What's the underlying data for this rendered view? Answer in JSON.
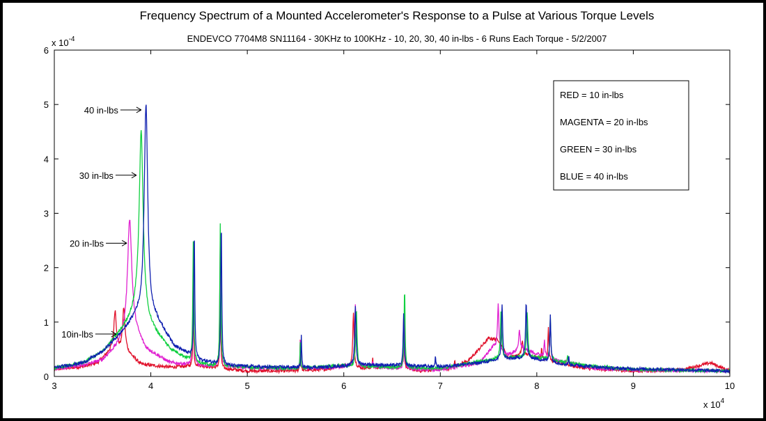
{
  "chart_data": {
    "type": "line",
    "title": "Frequency Spectrum of a Mounted Accelerometer's Response to a Pulse at Various Torque Levels",
    "subtitle": "ENDEVCO 7704M8 SN11164 - 30KHz to 100KHz - 10, 20, 30, 40 in-lbs - 6 Runs Each Torque - 5/2/2007",
    "xlabel": "",
    "ylabel": "",
    "xlim": [
      3,
      10
    ],
    "ylim": [
      0,
      6
    ],
    "x_multiplier_label": "x 10",
    "x_multiplier_exp": "4",
    "y_multiplier_label": "x 10",
    "y_multiplier_exp": "-4",
    "xticks": [
      3,
      4,
      5,
      6,
      7,
      8,
      9,
      10
    ],
    "yticks": [
      0,
      1,
      2,
      3,
      4,
      5,
      6
    ],
    "grid": false,
    "legend_position": "top-right",
    "legend": [
      {
        "text": "RED = 10 in-lbs"
      },
      {
        "text": "MAGENTA = 20 in-lbs"
      },
      {
        "text": "GREEN = 30 in-lbs"
      },
      {
        "text": "BLUE = 40 in-lbs"
      }
    ],
    "annotations": [
      {
        "text": "40 in-lbs",
        "x": 3.93,
        "y": 4.9
      },
      {
        "text": "30 in-lbs",
        "x": 3.88,
        "y": 3.7
      },
      {
        "text": "20 in-lbs",
        "x": 3.78,
        "y": 2.45
      },
      {
        "text": "10in-lbs",
        "x": 3.67,
        "y": 0.78
      }
    ],
    "series": [
      {
        "color": "#e0102a",
        "base": [
          [
            3.0,
            0.13
          ],
          [
            3.3,
            0.18
          ],
          [
            3.45,
            0.25
          ],
          [
            3.6,
            0.5
          ],
          [
            3.75,
            0.45
          ],
          [
            3.9,
            0.22
          ],
          [
            4.2,
            0.17
          ],
          [
            4.5,
            0.2
          ],
          [
            4.7,
            0.15
          ],
          [
            5.0,
            0.1
          ],
          [
            5.5,
            0.1
          ],
          [
            5.8,
            0.13
          ],
          [
            6.0,
            0.2
          ],
          [
            6.2,
            0.15
          ],
          [
            6.5,
            0.18
          ],
          [
            6.8,
            0.1
          ],
          [
            7.1,
            0.15
          ],
          [
            7.3,
            0.3
          ],
          [
            7.5,
            0.7
          ],
          [
            7.6,
            0.68
          ],
          [
            7.7,
            0.35
          ],
          [
            7.9,
            0.4
          ],
          [
            8.1,
            0.3
          ],
          [
            8.5,
            0.15
          ],
          [
            9.0,
            0.1
          ],
          [
            9.5,
            0.12
          ],
          [
            9.8,
            0.25
          ],
          [
            10.0,
            0.1
          ]
        ],
        "peaks": [
          [
            3.63,
            1.2,
            0.015
          ],
          [
            3.72,
            1.25,
            0.015
          ],
          [
            4.44,
            1.3,
            0.005
          ],
          [
            4.72,
            1.3,
            0.006
          ],
          [
            5.55,
            0.8,
            0.004
          ],
          [
            6.1,
            1.2,
            0.008
          ],
          [
            6.3,
            0.35,
            0.004
          ],
          [
            6.62,
            1.05,
            0.006
          ],
          [
            7.15,
            0.3,
            0.004
          ],
          [
            7.85,
            0.65,
            0.01
          ],
          [
            8.05,
            0.5,
            0.006
          ],
          [
            8.12,
            0.9,
            0.006
          ],
          [
            8.3,
            0.3,
            0.004
          ]
        ]
      },
      {
        "color": "#e020d0",
        "base": [
          [
            3.0,
            0.14
          ],
          [
            3.3,
            0.2
          ],
          [
            3.5,
            0.3
          ],
          [
            3.65,
            0.55
          ],
          [
            3.8,
            0.95
          ],
          [
            3.95,
            0.5
          ],
          [
            4.2,
            0.25
          ],
          [
            4.5,
            0.2
          ],
          [
            4.8,
            0.18
          ],
          [
            5.2,
            0.15
          ],
          [
            5.8,
            0.15
          ],
          [
            6.1,
            0.2
          ],
          [
            6.5,
            0.15
          ],
          [
            7.0,
            0.12
          ],
          [
            7.4,
            0.25
          ],
          [
            7.55,
            0.55
          ],
          [
            7.7,
            0.4
          ],
          [
            7.85,
            0.5
          ],
          [
            8.2,
            0.3
          ],
          [
            8.6,
            0.15
          ],
          [
            9.0,
            0.12
          ],
          [
            10.0,
            0.1
          ]
        ],
        "peaks": [
          [
            3.78,
            2.9,
            0.025
          ],
          [
            4.44,
            2.0,
            0.006
          ],
          [
            4.72,
            2.6,
            0.006
          ],
          [
            5.55,
            0.8,
            0.004
          ],
          [
            6.12,
            1.35,
            0.008
          ],
          [
            6.3,
            0.3,
            0.004
          ],
          [
            6.63,
            1.15,
            0.006
          ],
          [
            7.6,
            1.35,
            0.008
          ],
          [
            7.82,
            0.85,
            0.01
          ],
          [
            8.08,
            0.65,
            0.006
          ],
          [
            8.14,
            1.05,
            0.006
          ]
        ]
      },
      {
        "color": "#10d040",
        "base": [
          [
            3.0,
            0.15
          ],
          [
            3.3,
            0.25
          ],
          [
            3.5,
            0.45
          ],
          [
            3.7,
            0.85
          ],
          [
            3.85,
            1.2
          ],
          [
            4.0,
            0.9
          ],
          [
            4.2,
            0.5
          ],
          [
            4.4,
            0.3
          ],
          [
            4.6,
            0.2
          ],
          [
            5.0,
            0.17
          ],
          [
            5.5,
            0.15
          ],
          [
            6.0,
            0.2
          ],
          [
            6.5,
            0.17
          ],
          [
            7.0,
            0.15
          ],
          [
            7.5,
            0.3
          ],
          [
            7.7,
            0.35
          ],
          [
            8.0,
            0.35
          ],
          [
            8.5,
            0.2
          ],
          [
            9.0,
            0.13
          ],
          [
            10.0,
            0.1
          ]
        ],
        "peaks": [
          [
            3.9,
            4.5,
            0.025
          ],
          [
            4.44,
            2.5,
            0.006
          ],
          [
            4.72,
            2.8,
            0.006
          ],
          [
            5.55,
            0.7,
            0.004
          ],
          [
            6.13,
            1.25,
            0.008
          ],
          [
            6.63,
            1.65,
            0.006
          ],
          [
            7.63,
            1.25,
            0.008
          ],
          [
            7.9,
            1.2,
            0.008
          ],
          [
            8.14,
            1.15,
            0.006
          ],
          [
            8.32,
            0.4,
            0.004
          ]
        ]
      },
      {
        "color": "#1020b0",
        "base": [
          [
            3.0,
            0.16
          ],
          [
            3.3,
            0.25
          ],
          [
            3.5,
            0.45
          ],
          [
            3.7,
            0.8
          ],
          [
            3.85,
            1.1
          ],
          [
            4.05,
            1.05
          ],
          [
            4.25,
            0.55
          ],
          [
            4.5,
            0.3
          ],
          [
            4.8,
            0.2
          ],
          [
            5.2,
            0.17
          ],
          [
            5.8,
            0.17
          ],
          [
            6.2,
            0.22
          ],
          [
            6.6,
            0.2
          ],
          [
            7.0,
            0.18
          ],
          [
            7.4,
            0.25
          ],
          [
            7.6,
            0.3
          ],
          [
            7.9,
            0.35
          ],
          [
            8.3,
            0.22
          ],
          [
            8.8,
            0.15
          ],
          [
            9.3,
            0.13
          ],
          [
            10.0,
            0.1
          ]
        ],
        "peaks": [
          [
            3.95,
            5.0,
            0.022
          ],
          [
            4.45,
            2.7,
            0.006
          ],
          [
            4.73,
            2.9,
            0.006
          ],
          [
            5.56,
            0.75,
            0.004
          ],
          [
            6.12,
            1.3,
            0.008
          ],
          [
            6.62,
            1.15,
            0.006
          ],
          [
            6.95,
            0.4,
            0.004
          ],
          [
            7.64,
            1.3,
            0.008
          ],
          [
            7.89,
            1.35,
            0.008
          ],
          [
            8.14,
            1.15,
            0.006
          ],
          [
            8.33,
            0.4,
            0.004
          ]
        ]
      }
    ]
  }
}
